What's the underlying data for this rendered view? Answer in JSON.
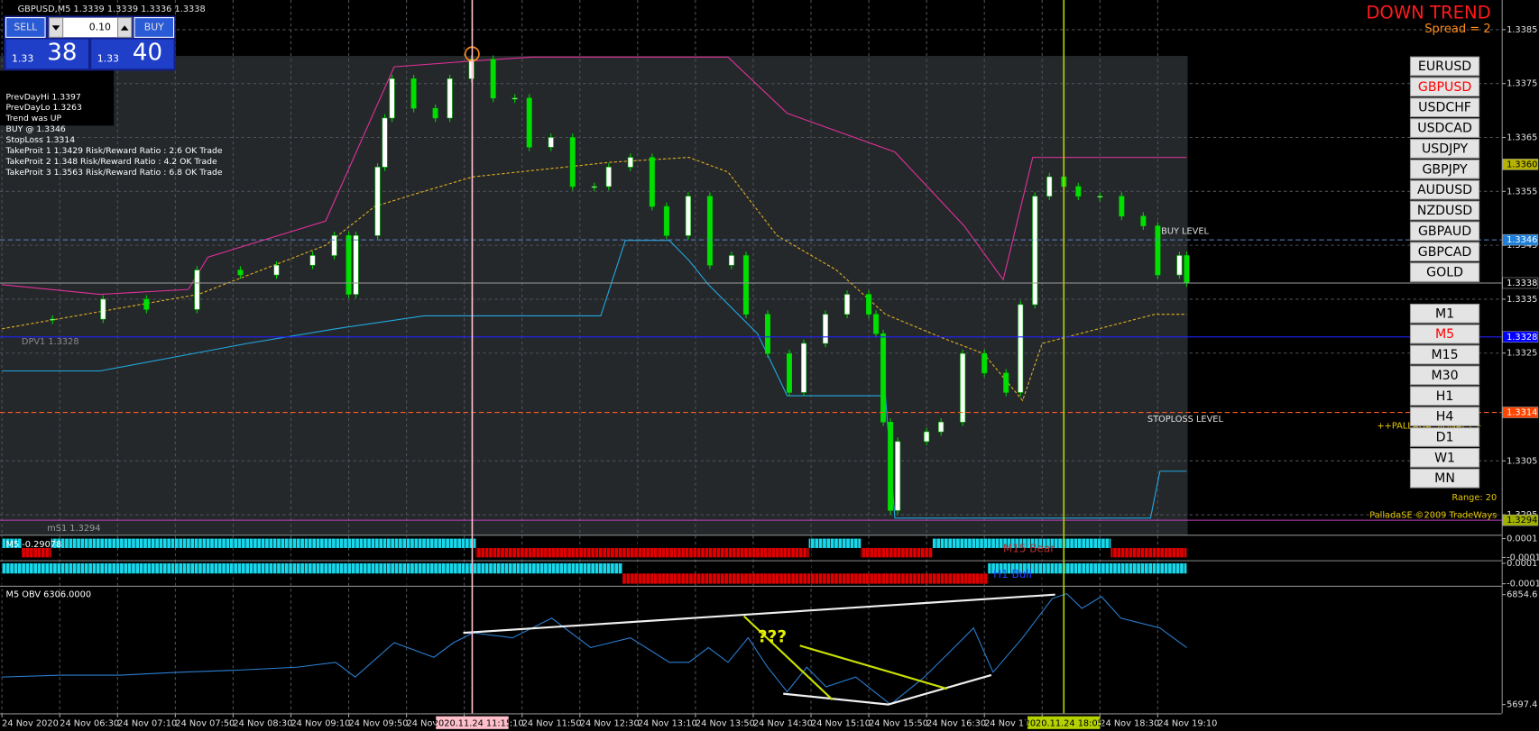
{
  "chart_data": [
    {
      "type": "candlestick",
      "title": "GBPUSD,M5  1.3339 1.3339 1.3336 1.3338",
      "x": [
        0,
        7,
        14,
        20,
        27,
        33,
        38,
        43,
        46,
        48,
        49,
        52,
        53,
        54,
        57,
        60,
        62,
        65,
        68,
        71,
        73,
        76,
        79,
        82,
        84,
        87,
        90,
        92,
        95,
        98,
        101,
        103,
        106,
        109,
        111,
        114,
        117,
        120,
        121,
        122,
        123,
        124,
        128,
        130,
        133,
        136,
        139,
        141,
        143,
        145,
        147,
        149,
        152,
        155,
        158,
        160,
        163,
        164
      ],
      "values": [
        1.33313,
        1.33313,
        1.3335,
        1.33331,
        1.33404,
        1.33395,
        1.33413,
        1.33431,
        1.33468,
        1.33359,
        1.33468,
        1.33595,
        1.33686,
        1.33759,
        1.33704,
        1.33686,
        1.33759,
        1.33795,
        1.33723,
        1.33723,
        1.33632,
        1.3365,
        1.33559,
        1.33559,
        1.33595,
        1.33613,
        1.33522,
        1.33468,
        1.33541,
        1.33413,
        1.33431,
        1.33322,
        1.33249,
        1.33177,
        1.33268,
        1.33322,
        1.33359,
        1.33322,
        1.33286,
        1.33122,
        1.32958,
        1.33086,
        1.33104,
        1.33122,
        1.33249,
        1.33213,
        1.33177,
        1.3334,
        1.33541,
        1.33577,
        1.33559,
        1.33541,
        1.33541,
        1.33504,
        1.33486,
        1.33395,
        1.33431,
        1.3338
      ],
      "up_color": "#ffffff",
      "down_color": "#00e000",
      "xlim": [
        0,
        164
      ],
      "ylim": [
        1.32913,
        1.33905
      ],
      "grid": true,
      "yticks": [
        1.3385,
        1.3375,
        1.3365,
        1.3355,
        1.3345,
        1.3335,
        1.3325,
        1.3305,
        1.3295
      ],
      "xticks": [
        {
          "value": 0,
          "label": "24 Nov 2020"
        },
        {
          "value": 8,
          "label": "24 Nov 06:30"
        },
        {
          "value": 16,
          "label": "24 Nov 07:10"
        },
        {
          "value": 24,
          "label": "24 Nov 07:50"
        },
        {
          "value": 32,
          "label": "24 Nov 08:30"
        },
        {
          "value": 40,
          "label": "24 Nov 09:10"
        },
        {
          "value": 48,
          "label": "24 Nov 09:50"
        },
        {
          "value": 56,
          "label": "24 Nov 10:30"
        },
        {
          "value": 64,
          "label": "24 Nov 11:10"
        },
        {
          "value": 72,
          "label": "24 Nov 11:50"
        },
        {
          "value": 80,
          "label": "24 Nov 12:30"
        },
        {
          "value": 88,
          "label": "24 Nov 13:10"
        },
        {
          "value": 96,
          "label": "24 Nov 13:50"
        },
        {
          "value": 104,
          "label": "24 Nov 14:30"
        },
        {
          "value": 112,
          "label": "24 Nov 15:10"
        },
        {
          "value": 120,
          "label": "24 Nov 15:50"
        },
        {
          "value": 128,
          "label": "24 Nov 16:30"
        },
        {
          "value": 136,
          "label": "24 Nov 17:10"
        },
        {
          "value": 144,
          "label": "24 Nov 17:50"
        },
        {
          "value": 152,
          "label": "24 Nov 18:30"
        },
        {
          "value": 160,
          "label": "24 Nov 19:10"
        }
      ],
      "vlines": [
        {
          "value": 65.1,
          "label": "2020.11.24 11:15",
          "color": "#ffc0cb"
        },
        {
          "value": 147,
          "label": "2020.11.24 18:05",
          "color": "#b4d200"
        }
      ],
      "overlays": [
        {
          "color": "#e0309a",
          "dash": false,
          "x": [
            0,
            13.6,
            25.8,
            28.5,
            44.8,
            54.3,
            65.2,
            73.4,
            100.5,
            108.7,
            123.6,
            133.2,
            138.6,
            142.7,
            164
          ],
          "values": [
            1.33377,
            1.33359,
            1.33368,
            1.33428,
            1.33495,
            1.33781,
            1.33792,
            1.33799,
            1.33799,
            1.33695,
            1.33623,
            1.33486,
            1.33386,
            1.33613,
            1.33613
          ]
        },
        {
          "color": "#20a8e0",
          "dash": false,
          "x": [
            0,
            13.6,
            34,
            46.2,
            58.4,
            82.9,
            86.3,
            92.4,
            95.1,
            97.8,
            104.6,
            108.7,
            122.3,
            123.6,
            159,
            160.3,
            164
          ],
          "values": [
            1.33217,
            1.33217,
            1.33268,
            1.33295,
            1.33319,
            1.33319,
            1.33459,
            1.33459,
            1.33422,
            1.33377,
            1.33286,
            1.33171,
            1.33171,
            1.32944,
            1.32944,
            1.33031,
            1.33031
          ]
        },
        {
          "color": "#e0b020",
          "dash": true,
          "x": [
            0,
            27.2,
            44.8,
            51.6,
            58.4,
            65.2,
            84.2,
            95.1,
            100.5,
            107.3,
            115.5,
            122.3,
            130.4,
            135.9,
            141.3,
            144,
            159.6,
            164
          ],
          "values": [
            1.33295,
            1.33359,
            1.3345,
            1.33522,
            1.3355,
            1.33577,
            1.33604,
            1.33613,
            1.33586,
            1.33468,
            1.33404,
            1.33322,
            1.33277,
            1.33249,
            1.33162,
            1.33268,
            1.33322,
            1.33322
          ]
        }
      ],
      "levels": [
        {
          "value": 1.336,
          "label": "1.3360",
          "box": "#b5b300",
          "color": "#e0309a",
          "line": "none"
        },
        {
          "value": 1.3346,
          "label": "1.3346",
          "box": "#1e7fd8",
          "color": "#5a86c8",
          "line": "dashed",
          "text": "BUY LEVEL"
        },
        {
          "value": 1.3338,
          "label": "1.3338",
          "box": "#000000",
          "color": "#9a9a9a",
          "line": "solid"
        },
        {
          "value": 1.3328,
          "label": "1.3328",
          "box": "#0000ff",
          "color": "#2020ff",
          "line": "solid",
          "text": "DPV1 1.3328"
        },
        {
          "value": 1.3314,
          "label": "1.3314",
          "box": "#ff4500",
          "color": "#ff5a1e",
          "line": "dashed",
          "text": "STOPLOSS LEVEL"
        },
        {
          "value": 1.3294,
          "label": "1.3294",
          "box": "#a0b000",
          "color": "#c040c0",
          "line": "solid",
          "text": "mS1  1.3294"
        }
      ]
    },
    {
      "type": "state-bars",
      "title": "M5 -0.29078",
      "annotation": "M15 Bear",
      "annotation_color": "#b03030",
      "up_color": "#18d8ec",
      "down_color": "#e00000",
      "ylim": [
        -0.00012,
        0.00012
      ],
      "yticks": [
        0.0001,
        -0.0001
      ],
      "segments": [
        {
          "from": 0,
          "to": 2.7,
          "value": 0.0001
        },
        {
          "from": 2.7,
          "to": 6.8,
          "value": -0.0001
        },
        {
          "from": 6.8,
          "to": 65.6,
          "value": 0.0001
        },
        {
          "from": 65.6,
          "to": 111.7,
          "value": -0.0001
        },
        {
          "from": 111.7,
          "to": 118.9,
          "value": 0.0001
        },
        {
          "from": 118.9,
          "to": 128.8,
          "value": -0.0001
        },
        {
          "from": 128.8,
          "to": 153.5,
          "value": 0.0001
        },
        {
          "from": 153.5,
          "to": 164,
          "value": -0.0001
        }
      ]
    },
    {
      "type": "state-bars",
      "annotation": "H1 Bull",
      "annotation_color": "#2040ff",
      "up_color": "#18d8ec",
      "down_color": "#e00000",
      "ylim": [
        -0.00012,
        0.00012
      ],
      "yticks": [
        0.0001,
        -0.0001
      ],
      "segments": [
        {
          "from": 0,
          "to": 85.9,
          "value": 0.0001
        },
        {
          "from": 85.9,
          "to": 136.5,
          "value": -0.0001
        },
        {
          "from": 136.5,
          "to": 164,
          "value": 0.0001
        }
      ]
    },
    {
      "type": "line",
      "title": "M5 OBV  6306.0000",
      "annotation": "???",
      "annotation_color": "#e6f000",
      "color": "#2a7fd4",
      "ylim": [
        5604.7,
        6937.2
      ],
      "yticks": [
        6854.6,
        5697.4
      ],
      "x": [
        0,
        8.2,
        16.3,
        24.5,
        32.6,
        40.8,
        46.2,
        48.9,
        54.3,
        59.8,
        62.5,
        65.2,
        70.7,
        76.1,
        81.5,
        87,
        92.4,
        95.1,
        97.8,
        100.5,
        103.3,
        106,
        108.7,
        111.4,
        114.1,
        118.2,
        123,
        127.7,
        131.8,
        134.5,
        137.2,
        141.3,
        145.4,
        147.4,
        149.5,
        152.2,
        154.9,
        160.3,
        164
      ],
      "values": [
        5987,
        6007,
        6007,
        6038,
        6059,
        6090,
        6142,
        5987,
        6348,
        6194,
        6348,
        6452,
        6400,
        6607,
        6297,
        6400,
        6142,
        6142,
        6297,
        6142,
        6400,
        6090,
        5832,
        6090,
        5884,
        5987,
        5698,
        5987,
        6297,
        6503,
        6038,
        6400,
        6813,
        6865,
        6710,
        6834,
        6607,
        6503,
        6297
      ]
    }
  ],
  "trade_panel": {
    "sell": "SELL",
    "buy": "BUY",
    "lots": "0.10",
    "bid_big": "1.33",
    "bid_pips": "38",
    "ask_big": "1.33",
    "ask_pips": "40"
  },
  "info": [
    "PrevDayHi 1.3397",
    "PrevDayLo 1.3263",
    "Trend was UP",
    "BUY @ 1.3346",
    "StopLoss 1.3314",
    "TakeProit 1 1.3429 Risk/Reward Ratio : 2.6 OK Trade",
    "TakeProit 2 1.348 Risk/Reward Ratio : 4.2 OK Trade",
    "TakeProit 3 1.3563 Risk/Reward Ratio : 6.8 OK Trade"
  ],
  "status": {
    "trend": "DOWN TREND",
    "spread": "Spread = 2",
    "signal": "++PALLADA SIGNAL++",
    "range": "Range: 20",
    "copyright": "PalladaSE ©2009 TradeWays"
  },
  "symbols": [
    {
      "label": "EURUSD",
      "color": "#000000"
    },
    {
      "label": "GBPUSD",
      "color": "#ff0000"
    },
    {
      "label": "USDCHF",
      "color": "#000000"
    },
    {
      "label": "USDCAD",
      "color": "#000000"
    },
    {
      "label": "USDJPY",
      "color": "#000000"
    },
    {
      "label": "GBPJPY",
      "color": "#000000"
    },
    {
      "label": "AUDUSD",
      "color": "#000000"
    },
    {
      "label": "NZDUSD",
      "color": "#000000"
    },
    {
      "label": "GBPAUD",
      "color": "#000000"
    },
    {
      "label": "GBPCAD",
      "color": "#000000"
    },
    {
      "label": "GOLD",
      "color": "#000000"
    }
  ],
  "timeframes": [
    {
      "label": "M1",
      "color": "#000000"
    },
    {
      "label": "M5",
      "color": "#ff0000"
    },
    {
      "label": "M15",
      "color": "#000000"
    },
    {
      "label": "M30",
      "color": "#000000"
    },
    {
      "label": "H1",
      "color": "#000000"
    },
    {
      "label": "H4",
      "color": "#000000"
    },
    {
      "label": "D1",
      "color": "#000000"
    },
    {
      "label": "W1",
      "color": "#000000"
    },
    {
      "label": "MN",
      "color": "#000000"
    }
  ]
}
